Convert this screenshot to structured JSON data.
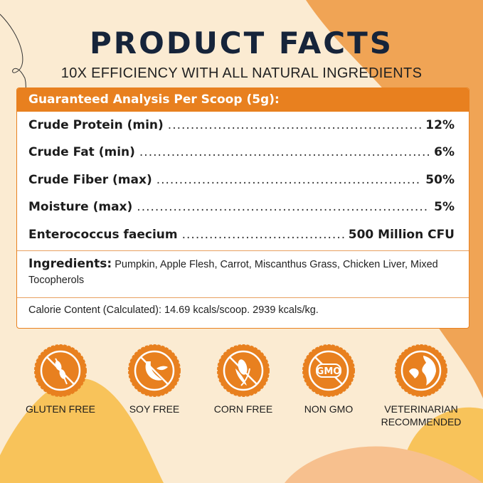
{
  "header": {
    "title": "PRODUCT FACTS",
    "subtitle": "10X EFFICIENCY WITH ALL NATURAL INGREDIENTS"
  },
  "analysis": {
    "heading": "Guaranteed Analysis Per Scoop (5g):",
    "rows": [
      {
        "label": "Crude Protein (min)",
        "value": "12%"
      },
      {
        "label": "Crude Fat (min)",
        "value": "6%"
      },
      {
        "label": "Crude Fiber (max)",
        "value": "50%"
      },
      {
        "label": "Moisture (max)",
        "value": "5%"
      },
      {
        "label": "Enterococcus faecium",
        "value": "500 Million CFU"
      }
    ]
  },
  "ingredients": {
    "label": "Ingredients:",
    "text": "Pumpkin, Apple Flesh, Carrot, Miscanthus Grass, Chicken Liver, Mixed Tocopherols"
  },
  "calorie": "Calorie Content (Calculated): 14.69 kcals/scoop. 2939 kcals/kg.",
  "badges": [
    {
      "icon": "wheat-icon",
      "label": "GLUTEN FREE"
    },
    {
      "icon": "soybean-icon",
      "label": "SOY FREE"
    },
    {
      "icon": "corn-icon",
      "label": "CORN FREE"
    },
    {
      "icon": "gmo-icon",
      "label": "NON GMO",
      "icon_text": "GMO"
    },
    {
      "icon": "dog-cat-icon",
      "label": "VETERINARIAN RECOMMENDED"
    }
  ],
  "colors": {
    "accent": "#e8801f",
    "title": "#16243a",
    "background": "#fbebd2"
  }
}
